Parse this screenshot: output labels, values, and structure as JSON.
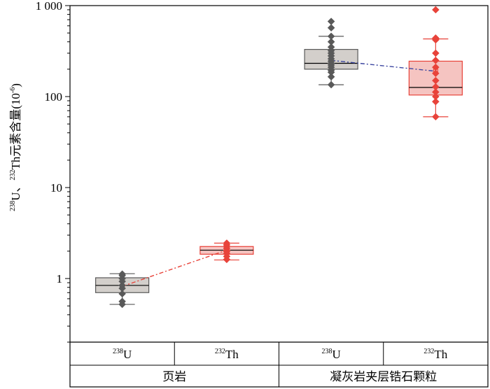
{
  "chart_data": {
    "type": "box",
    "title": "",
    "xlabel": "",
    "ylabel": {
      "u_mass": "238",
      "u": "U、",
      "th_mass": "232",
      "rest": "Th元素含量(10",
      "exp": "-6",
      "close": ")"
    },
    "y_scale": "log",
    "ylim": [
      0.2,
      1000
    ],
    "y_ticks": [
      {
        "value": 1,
        "label": "1"
      },
      {
        "value": 10,
        "label": "10"
      },
      {
        "value": 100,
        "label": "100"
      },
      {
        "value": 1000,
        "label": "1 000"
      }
    ],
    "groups": [
      {
        "label": "页岩",
        "categories": [
          0,
          1
        ]
      },
      {
        "label": "凝灰岩夹层锆石颗粒",
        "categories": [
          2,
          3
        ]
      }
    ],
    "categories": [
      {
        "mass": "238",
        "element": "U",
        "group": "页岩",
        "color": "#595959",
        "box_fill": "#d3cfcb",
        "box": {
          "whisker_low": 0.52,
          "q1": 0.7,
          "median": 0.84,
          "q3": 1.02,
          "whisker_high": 1.13
        },
        "mean": 0.82,
        "points": [
          0.52,
          0.56,
          0.68,
          0.78,
          0.84,
          0.93,
          1.0,
          1.08,
          1.12
        ]
      },
      {
        "mass": "232",
        "element": "Th",
        "group": "页岩",
        "color": "#e8433a",
        "box_fill": "#f5c4c1",
        "box": {
          "whisker_low": 1.6,
          "q1": 1.85,
          "median": 2.05,
          "q3": 2.25,
          "whisker_high": 2.45
        },
        "mean": 2.05,
        "points": [
          1.62,
          1.75,
          1.88,
          1.98,
          2.05,
          2.15,
          2.25,
          2.35,
          2.45
        ]
      },
      {
        "mass": "238",
        "element": "U",
        "group": "凝灰岩夹层锆石颗粒",
        "color": "#595959",
        "box_fill": "#d3cfcb",
        "box": {
          "whisker_low": 135,
          "q1": 200,
          "median": 232,
          "q3": 330,
          "whisker_high": 460
        },
        "mean": 250,
        "points": [
          135,
          165,
          185,
          195,
          210,
          222,
          232,
          245,
          260,
          280,
          300,
          320,
          350,
          400,
          460,
          570,
          670
        ]
      },
      {
        "mass": "232",
        "element": "Th",
        "group": "凝灰岩夹层锆石颗粒",
        "color": "#e8433a",
        "box_fill": "#f5c4c1",
        "box": {
          "whisker_low": 60,
          "q1": 104,
          "median": 126,
          "q3": 245,
          "whisker_high": 430
        },
        "mean": 190,
        "points": [
          60,
          88,
          100,
          112,
          128,
          150,
          180,
          210,
          250,
          300,
          420,
          440,
          900
        ]
      }
    ],
    "mean_lines": [
      {
        "from": 0,
        "to": 1,
        "color": "#e8433a"
      },
      {
        "from": 2,
        "to": 3,
        "color": "#3c46a0"
      }
    ],
    "grid": false,
    "legend": "none"
  }
}
